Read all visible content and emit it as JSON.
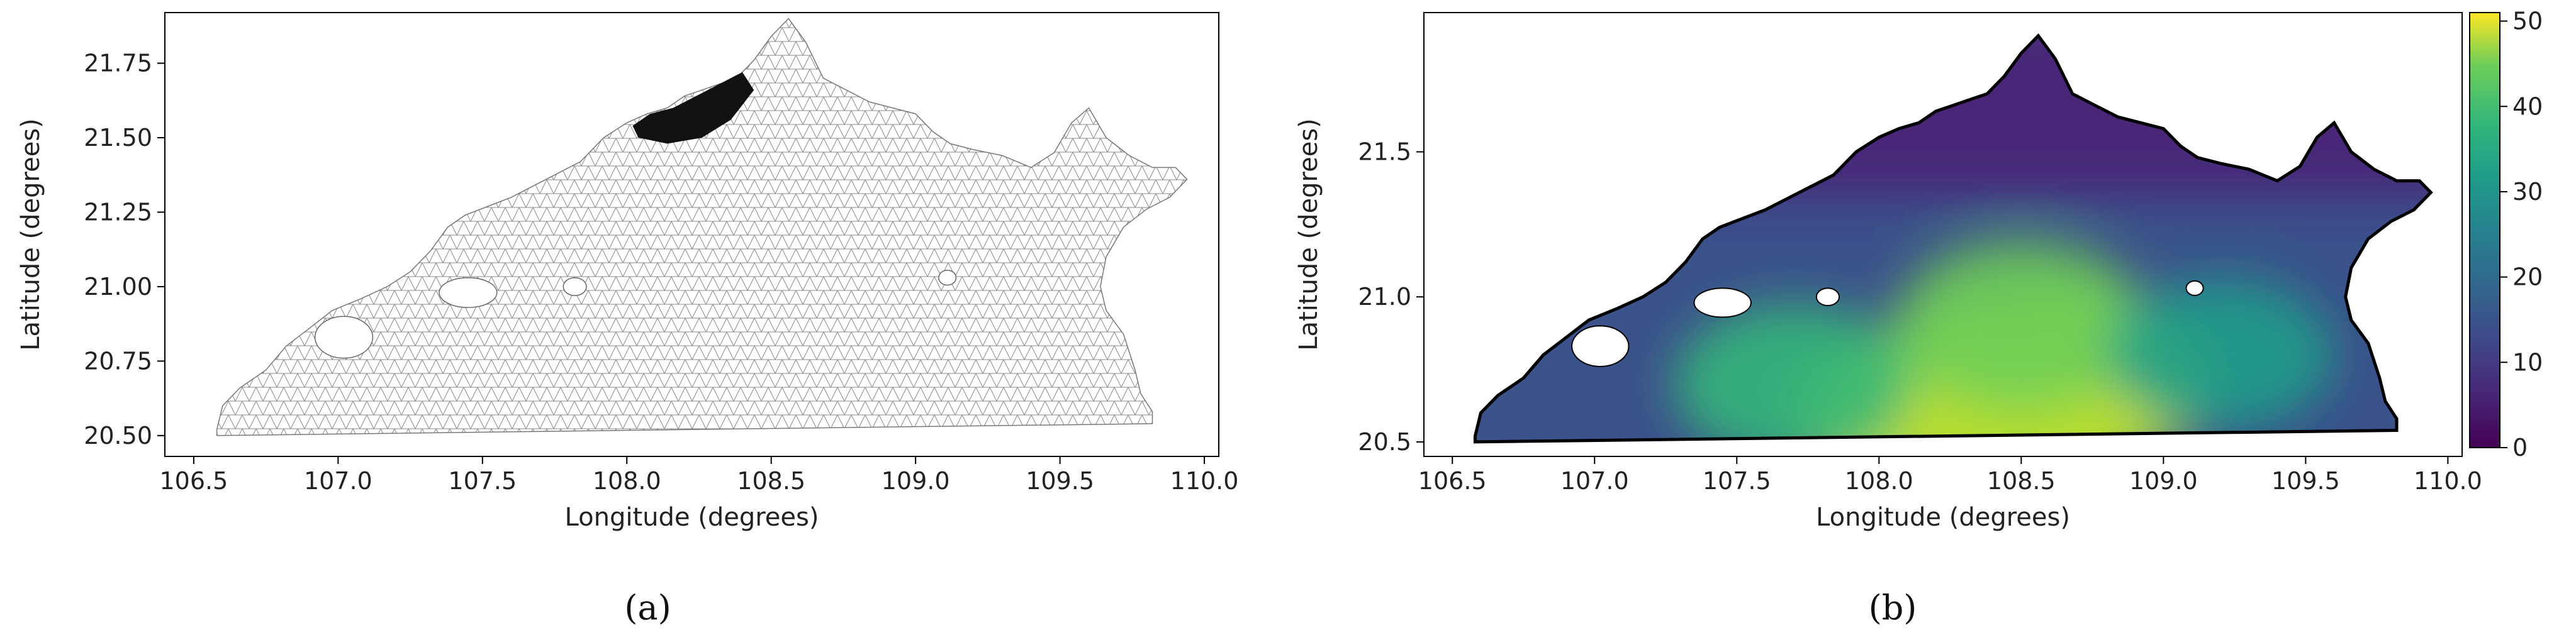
{
  "chart_data": [
    {
      "panel_label": "(a)",
      "type": "mesh",
      "xlabel": "Longitude (degrees)",
      "ylabel": "Latitude (degrees)",
      "xlim": [
        106.4,
        110.05
      ],
      "ylim": [
        20.43,
        21.92
      ],
      "xticks": [
        "106.5",
        "107.0",
        "107.5",
        "108.0",
        "108.5",
        "109.0",
        "109.5",
        "110.0"
      ],
      "xtick_values": [
        106.5,
        107.0,
        107.5,
        108.0,
        108.5,
        109.0,
        109.5,
        110.0
      ],
      "yticks": [
        "20.50",
        "20.75",
        "21.00",
        "21.25",
        "21.50",
        "21.75"
      ],
      "ytick_values": [
        20.5,
        20.75,
        21.0,
        21.25,
        21.5,
        21.75
      ],
      "colors": {
        "mesh": "#8a8a8a",
        "dense_mesh": "#1a1a1a"
      }
    },
    {
      "panel_label": "(b)",
      "type": "heatmap",
      "xlabel": "Longitude (degrees)",
      "ylabel": "Latitude (degrees)",
      "xlim": [
        106.4,
        110.05
      ],
      "ylim": [
        20.45,
        21.98
      ],
      "xticks": [
        "106.5",
        "107.0",
        "107.5",
        "108.0",
        "108.5",
        "109.0",
        "109.5",
        "110.0"
      ],
      "xtick_values": [
        106.5,
        107.0,
        107.5,
        108.0,
        108.5,
        109.0,
        109.5,
        110.0
      ],
      "yticks": [
        "20.5",
        "21.0",
        "21.5"
      ],
      "ytick_values": [
        20.5,
        21.0,
        21.5
      ],
      "colorbar": {
        "min": 0,
        "max": 51,
        "ticks": [
          "0",
          "10",
          "20",
          "30",
          "40",
          "50"
        ],
        "tick_values": [
          0,
          10,
          20,
          30,
          40,
          50
        ],
        "colormap": "viridis"
      },
      "hotspots": [
        {
          "lon": 108.45,
          "lat": 20.62,
          "value": 50
        },
        {
          "lon": 108.2,
          "lat": 20.58,
          "value": 48
        },
        {
          "lon": 108.7,
          "lat": 20.7,
          "value": 44
        },
        {
          "lon": 108.5,
          "lat": 20.9,
          "value": 38
        },
        {
          "lon": 107.7,
          "lat": 20.7,
          "value": 36
        },
        {
          "lon": 109.2,
          "lat": 20.8,
          "value": 30
        }
      ]
    }
  ]
}
